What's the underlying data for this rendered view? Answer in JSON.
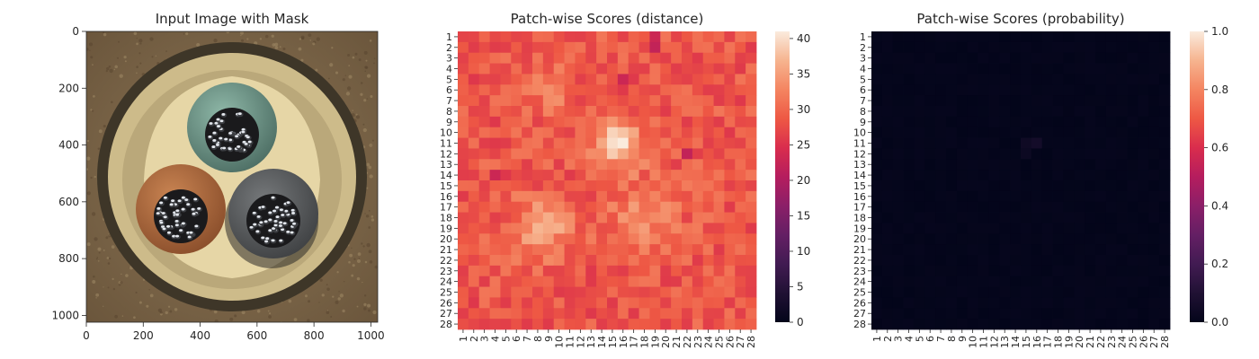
{
  "chart_data": [
    {
      "type": "image",
      "title": "Input Image with Mask",
      "xticks": [
        0,
        200,
        400,
        600,
        800,
        1000
      ],
      "yticks": [
        0,
        200,
        400,
        600,
        800,
        1000
      ],
      "xlim": [
        0,
        1024
      ],
      "ylim": [
        1024,
        0
      ],
      "image_description": "Top view of a cable cross-section: three insulated conductors (green-teal, orange-brown, grey) with stranded metal cores inside a beige sheath, on a brown textured background",
      "colors": {
        "background": "#7a6548",
        "sheath_outer": "#4a4030",
        "sheath": "#e0cf9e",
        "green_insulation": "#6f9688",
        "orange_insulation": "#b26a3e",
        "grey_insulation": "#5d5f60",
        "strands": "#c8ccd2"
      }
    },
    {
      "type": "heatmap",
      "title": "Patch-wise Scores (distance)",
      "rows": 28,
      "cols": 28,
      "row_labels": [
        "1",
        "2",
        "3",
        "4",
        "5",
        "6",
        "7",
        "8",
        "9",
        "10",
        "11",
        "12",
        "13",
        "14",
        "15",
        "16",
        "17",
        "18",
        "19",
        "20",
        "21",
        "22",
        "23",
        "24",
        "25",
        "26",
        "27",
        "28"
      ],
      "col_labels": [
        "1",
        "2",
        "3",
        "4",
        "5",
        "6",
        "7",
        "8",
        "9",
        "10",
        "11",
        "12",
        "13",
        "14",
        "15",
        "16",
        "17",
        "18",
        "19",
        "20",
        "21",
        "22",
        "23",
        "24",
        "25",
        "26",
        "27",
        "28"
      ],
      "colormap": "rocket",
      "vmin": 0,
      "vmax": 41,
      "colorbar_ticks": [
        0,
        5,
        10,
        15,
        20,
        25,
        30,
        35,
        40
      ],
      "value_range_observed": [
        20,
        41
      ],
      "notable_cells": [
        {
          "row": 11,
          "col": 15,
          "value": 40
        },
        {
          "row": 11,
          "col": 16,
          "value": 41
        },
        {
          "row": 10,
          "col": 16,
          "value": 38
        },
        {
          "row": 19,
          "col": 8,
          "value": 37
        },
        {
          "row": 19,
          "col": 9,
          "value": 36
        },
        {
          "row": 2,
          "col": 19,
          "value": 22
        },
        {
          "row": 1,
          "col": 19,
          "value": 23
        },
        {
          "row": 12,
          "col": 22,
          "value": 22
        },
        {
          "row": 14,
          "col": 4,
          "value": 23
        },
        {
          "row": 5,
          "col": 16,
          "value": 23
        }
      ]
    },
    {
      "type": "heatmap",
      "title": "Patch-wise Scores (probability)",
      "rows": 28,
      "cols": 28,
      "row_labels": [
        "1",
        "2",
        "3",
        "4",
        "5",
        "6",
        "7",
        "8",
        "9",
        "10",
        "11",
        "12",
        "13",
        "14",
        "15",
        "16",
        "17",
        "18",
        "19",
        "20",
        "21",
        "22",
        "23",
        "24",
        "25",
        "26",
        "27",
        "28"
      ],
      "col_labels": [
        "1",
        "2",
        "3",
        "4",
        "5",
        "6",
        "7",
        "8",
        "9",
        "10",
        "11",
        "12",
        "13",
        "14",
        "15",
        "16",
        "17",
        "18",
        "19",
        "20",
        "21",
        "22",
        "23",
        "24",
        "25",
        "26",
        "27",
        "28"
      ],
      "colormap": "rocket",
      "vmin": 0.0,
      "vmax": 1.0,
      "colorbar_ticks": [
        "0.0",
        "0.2",
        "0.4",
        "0.6",
        "0.8",
        "1.0"
      ],
      "value_range_observed": [
        0.0,
        0.06
      ],
      "notable_cells": [
        {
          "row": 11,
          "col": 16,
          "value": 0.06
        },
        {
          "row": 11,
          "col": 15,
          "value": 0.04
        },
        {
          "row": 12,
          "col": 15,
          "value": 0.03
        }
      ]
    }
  ]
}
